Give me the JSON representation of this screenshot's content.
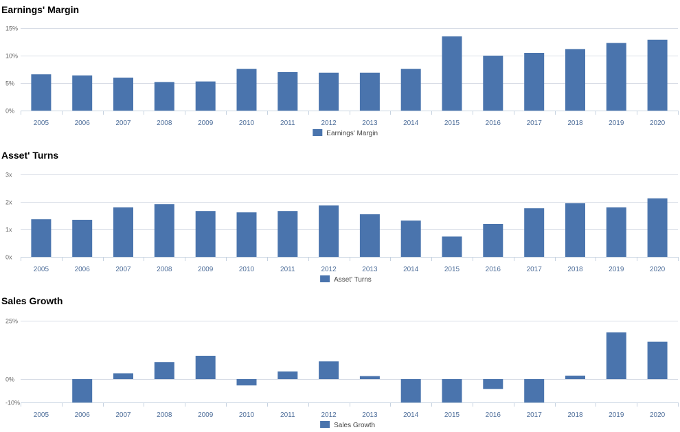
{
  "colors": {
    "bar": "#4a74ad",
    "grid": "#d8dde6",
    "axis": "#c6d2e0"
  },
  "chart_data": [
    {
      "type": "bar",
      "title": "Earnings' Margin",
      "categories": [
        "2005",
        "2006",
        "2007",
        "2008",
        "2009",
        "2010",
        "2011",
        "2012",
        "2013",
        "2014",
        "2015",
        "2016",
        "2017",
        "2018",
        "2019",
        "2020"
      ],
      "series": [
        {
          "name": "Earnings' Margin",
          "values": [
            6.6,
            6.4,
            6.0,
            5.2,
            5.3,
            7.6,
            7.0,
            6.9,
            6.9,
            7.6,
            13.5,
            10.0,
            10.5,
            11.2,
            12.3,
            12.9
          ]
        }
      ],
      "yticks": [
        0,
        5,
        10,
        15
      ],
      "ytick_labels": [
        "0%",
        "5%",
        "10%",
        "15%"
      ],
      "ylim": [
        0,
        15
      ],
      "legend": "bottom-center"
    },
    {
      "type": "bar",
      "title": "Asset' Turns",
      "categories": [
        "2005",
        "2006",
        "2007",
        "2008",
        "2009",
        "2010",
        "2011",
        "2012",
        "2013",
        "2014",
        "2015",
        "2016",
        "2017",
        "2018",
        "2019",
        "2020"
      ],
      "series": [
        {
          "name": "Asset' Turns",
          "values": [
            1.37,
            1.35,
            1.8,
            1.92,
            1.67,
            1.62,
            1.67,
            1.87,
            1.55,
            1.32,
            0.74,
            1.2,
            1.77,
            1.95,
            1.8,
            2.13
          ]
        }
      ],
      "yticks": [
        0,
        1,
        2,
        3
      ],
      "ytick_labels": [
        "0x",
        "1x",
        "2x",
        "3x"
      ],
      "ylim": [
        0,
        3
      ],
      "legend": "bottom-center"
    },
    {
      "type": "bar",
      "title": "Sales Growth",
      "categories": [
        "2005",
        "2006",
        "2007",
        "2008",
        "2009",
        "2010",
        "2011",
        "2012",
        "2013",
        "2014",
        "2015",
        "2016",
        "2017",
        "2018",
        "2019",
        "2020"
      ],
      "series": [
        {
          "name": "Sales Growth",
          "values": [
            null,
            -10,
            2.5,
            7.3,
            10,
            -2.7,
            3.3,
            7.6,
            1.3,
            -10,
            -10,
            -4.2,
            -10,
            1.5,
            20,
            16
          ]
        }
      ],
      "yticks": [
        -10,
        0,
        25
      ],
      "ytick_labels": [
        "-10%",
        "0%",
        "25%"
      ],
      "ylim": [
        -10,
        25
      ],
      "legend": "bottom-center"
    }
  ]
}
